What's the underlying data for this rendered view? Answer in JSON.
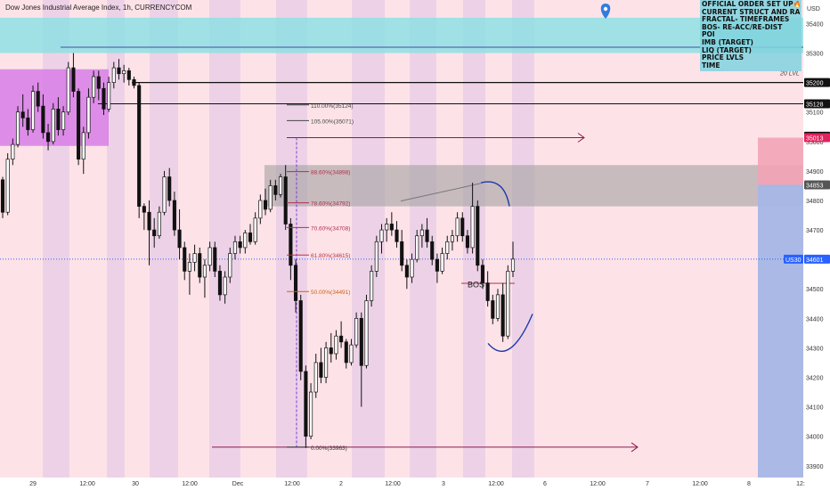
{
  "title": "Dow Jones Industrial Average Index, 1h, CURRENCYCOM",
  "currency": "USD",
  "legend_items": [
    "OFFICIAL ORDER SET UP🔥",
    "CURRENT STRUCT AND RANGES",
    "FRACTAL- TIMEFRAMES",
    "BOS- RE-ACC/RE-DIST",
    "POI",
    "IMB (TARGET)",
    "LIQ (TARGET)",
    "PRICE LVLS",
    "TIME"
  ],
  "price_axis": {
    "ticks": [
      35400,
      35300,
      35200,
      35100,
      35000,
      34900,
      34800,
      34700,
      34600,
      34500,
      34400,
      34300,
      34200,
      34100,
      34000,
      33900
    ],
    "tags": [
      {
        "label": "35200",
        "value": 35200,
        "bg": "#111111",
        "fg": "#ffffff"
      },
      {
        "label": "35128",
        "value": 35128,
        "bg": "#111111",
        "fg": "#ffffff"
      },
      {
        "label": "35018",
        "value": 35018,
        "bg": "#111111",
        "fg": "#ffffff"
      },
      {
        "label": "35013",
        "value": 35013,
        "bg": "#e0245e",
        "fg": "#ffffff"
      },
      {
        "label": "34853",
        "value": 34853,
        "bg": "#555555",
        "fg": "#ffffff"
      },
      {
        "label": "US30",
        "value": 34601,
        "bg": "#2962ff",
        "fg": "#ffffff"
      },
      {
        "label": "34601",
        "value": 34601,
        "bg": "#2962ff",
        "fg": "#ffffff"
      }
    ]
  },
  "time_axis": [
    "29",
    "12:00",
    "30",
    "12:00",
    "Dec",
    "12:00",
    "2",
    "12:00",
    "3",
    "12:00",
    "6",
    "12:00",
    "7",
    "12:00",
    "8",
    "12:"
  ],
  "annotations": {
    "level_label": "20 LVL",
    "bos": "BOS",
    "fib": [
      {
        "label": "110.00%(35124)",
        "value": 35124
      },
      {
        "label": "105.00%(35071)",
        "value": 35071
      },
      {
        "label": "88.60%(34898)",
        "value": 34898
      },
      {
        "label": "78.60%(34792)",
        "value": 34792
      },
      {
        "label": "70.60%(34708)",
        "value": 34708
      },
      {
        "label": "61.80%(34615)",
        "value": 34615
      },
      {
        "label": "50.00%(34491)",
        "value": 34491
      },
      {
        "label": "0.00%(33963)",
        "value": 33963
      }
    ]
  },
  "colors": {
    "background": "#fde3e8",
    "bull": "#ffffff",
    "bear": "#111111",
    "zone_cyan": "#8ee0e4",
    "zone_magenta": "#d77ee6",
    "zone_grey": "#9a9a9a",
    "ray": "#8b1a4a",
    "accent_blue": "#2962ff"
  },
  "chart_data": {
    "type": "candlestick",
    "title": "Dow Jones Industrial Average Index, 1h, CURRENCYCOM",
    "ylim": [
      33860,
      35480
    ],
    "last_price": 34601,
    "series": [
      {
        "name": "US30",
        "ohlc": [
          [
            34870,
            34880,
            34740,
            34760
          ],
          [
            34760,
            34960,
            34750,
            34940
          ],
          [
            34940,
            35010,
            34920,
            34990
          ],
          [
            34990,
            35120,
            34980,
            35100
          ],
          [
            35100,
            35160,
            35050,
            35080
          ],
          [
            35080,
            35110,
            35020,
            35040
          ],
          [
            35040,
            35190,
            35030,
            35170
          ],
          [
            35170,
            35200,
            35100,
            35120
          ],
          [
            35120,
            35160,
            35010,
            35030
          ],
          [
            35030,
            35060,
            34970,
            35000
          ],
          [
            35000,
            35130,
            34990,
            35110
          ],
          [
            35110,
            35150,
            35020,
            35040
          ],
          [
            35040,
            35120,
            35020,
            35100
          ],
          [
            35100,
            35270,
            35090,
            35250
          ],
          [
            35250,
            35300,
            35150,
            35170
          ],
          [
            35170,
            35180,
            34920,
            34940
          ],
          [
            34940,
            35050,
            34890,
            35030
          ],
          [
            35030,
            35180,
            35010,
            35150
          ],
          [
            35150,
            35240,
            35130,
            35220
          ],
          [
            35220,
            35240,
            35140,
            35180
          ],
          [
            35180,
            35200,
            35090,
            35110
          ],
          [
            35110,
            35220,
            35100,
            35200
          ],
          [
            35200,
            35270,
            35180,
            35250
          ],
          [
            35250,
            35280,
            35210,
            35230
          ],
          [
            35230,
            35260,
            35200,
            35240
          ],
          [
            35240,
            35250,
            35190,
            35210
          ],
          [
            35210,
            35220,
            35180,
            35190
          ],
          [
            35190,
            35200,
            34740,
            34780
          ],
          [
            34780,
            34790,
            34700,
            34760
          ],
          [
            34760,
            34800,
            34580,
            34700
          ],
          [
            34700,
            34740,
            34640,
            34680
          ],
          [
            34680,
            34780,
            34670,
            34760
          ],
          [
            34760,
            34900,
            34750,
            34880
          ],
          [
            34880,
            34910,
            34780,
            34800
          ],
          [
            34800,
            34830,
            34680,
            34700
          ],
          [
            34700,
            34770,
            34600,
            34640
          ],
          [
            34640,
            34660,
            34530,
            34560
          ],
          [
            34560,
            34620,
            34480,
            34590
          ],
          [
            34590,
            34650,
            34560,
            34620
          ],
          [
            34620,
            34640,
            34520,
            34540
          ],
          [
            34540,
            34600,
            34470,
            34580
          ],
          [
            34580,
            34660,
            34560,
            34640
          ],
          [
            34640,
            34660,
            34540,
            34560
          ],
          [
            34560,
            34580,
            34460,
            34480
          ],
          [
            34480,
            34560,
            34450,
            34540
          ],
          [
            34540,
            34640,
            34520,
            34620
          ],
          [
            34620,
            34680,
            34600,
            34660
          ],
          [
            34660,
            34680,
            34620,
            34640
          ],
          [
            34640,
            34700,
            34620,
            34690
          ],
          [
            34690,
            34720,
            34650,
            34660
          ],
          [
            34660,
            34760,
            34650,
            34740
          ],
          [
            34740,
            34820,
            34720,
            34800
          ],
          [
            34800,
            34840,
            34750,
            34770
          ],
          [
            34770,
            34870,
            34760,
            34850
          ],
          [
            34850,
            34870,
            34800,
            34820
          ],
          [
            34820,
            34890,
            34810,
            34880
          ],
          [
            34880,
            34920,
            34700,
            34720
          ],
          [
            34720,
            34740,
            34530,
            34580
          ],
          [
            34580,
            34600,
            34420,
            34460
          ],
          [
            34460,
            34480,
            34190,
            34220
          ],
          [
            34220,
            34240,
            33960,
            34000
          ],
          [
            34000,
            34180,
            33990,
            34150
          ],
          [
            34150,
            34280,
            34130,
            34250
          ],
          [
            34250,
            34300,
            34180,
            34200
          ],
          [
            34200,
            34320,
            34180,
            34300
          ],
          [
            34300,
            34350,
            34250,
            34280
          ],
          [
            34280,
            34360,
            34260,
            34340
          ],
          [
            34340,
            34390,
            34300,
            34320
          ],
          [
            34320,
            34330,
            34230,
            34250
          ],
          [
            34250,
            34330,
            34240,
            34310
          ],
          [
            34310,
            34420,
            34300,
            34400
          ],
          [
            34400,
            34420,
            34100,
            34240
          ],
          [
            34240,
            34480,
            34230,
            34460
          ],
          [
            34460,
            34580,
            34440,
            34560
          ],
          [
            34560,
            34680,
            34540,
            34660
          ],
          [
            34660,
            34720,
            34620,
            34700
          ],
          [
            34700,
            34740,
            34660,
            34720
          ],
          [
            34720,
            34760,
            34680,
            34700
          ],
          [
            34700,
            34730,
            34640,
            34660
          ],
          [
            34660,
            34700,
            34560,
            34580
          ],
          [
            34580,
            34600,
            34500,
            34540
          ],
          [
            34540,
            34620,
            34520,
            34600
          ],
          [
            34600,
            34700,
            34590,
            34680
          ],
          [
            34680,
            34720,
            34640,
            34700
          ],
          [
            34700,
            34740,
            34640,
            34660
          ],
          [
            34660,
            34680,
            34580,
            34600
          ],
          [
            34600,
            34620,
            34520,
            34560
          ],
          [
            34560,
            34640,
            34550,
            34620
          ],
          [
            34620,
            34680,
            34600,
            34660
          ],
          [
            34660,
            34700,
            34630,
            34680
          ],
          [
            34680,
            34760,
            34660,
            34740
          ],
          [
            34740,
            34760,
            34660,
            34680
          ],
          [
            34680,
            34700,
            34620,
            34640
          ],
          [
            34640,
            34860,
            34620,
            34780
          ],
          [
            34780,
            34800,
            34560,
            34580
          ],
          [
            34580,
            34600,
            34500,
            34520
          ],
          [
            34520,
            34560,
            34440,
            34460
          ],
          [
            34460,
            34480,
            34380,
            34400
          ],
          [
            34400,
            34500,
            34390,
            34480
          ],
          [
            34480,
            34520,
            34320,
            34340
          ],
          [
            34340,
            34580,
            34330,
            34560
          ],
          [
            34560,
            34660,
            34540,
            34601
          ]
        ]
      }
    ]
  }
}
